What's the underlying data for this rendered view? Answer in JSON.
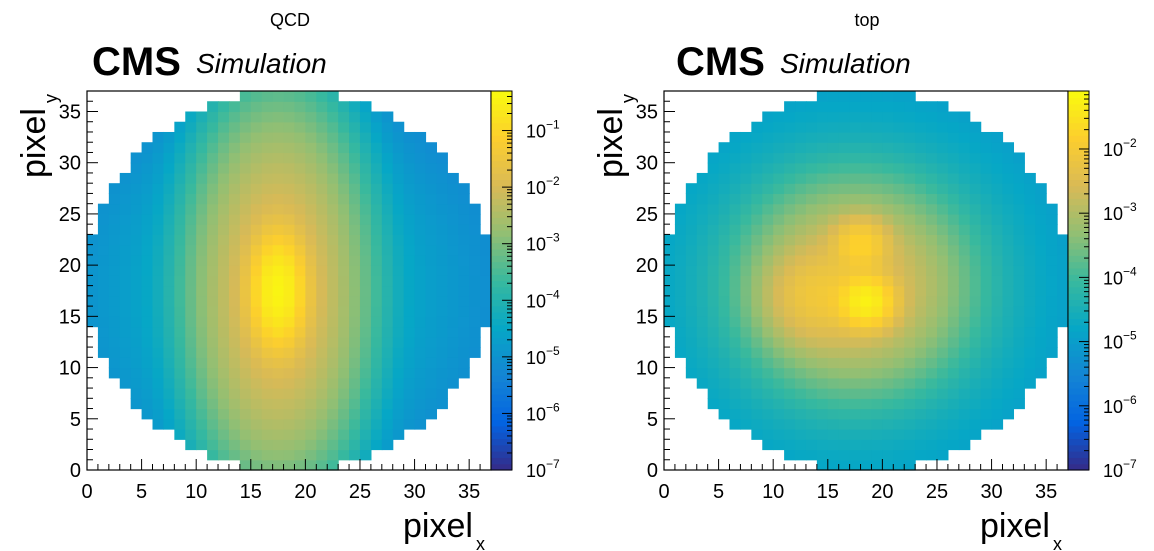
{
  "chart_data": [
    {
      "type": "heatmap",
      "title": "QCD",
      "experiment": "CMS",
      "status": "Simulation",
      "xlabel": "pixel",
      "xlabel_sub": "x",
      "ylabel": "pixel",
      "ylabel_sub": "y",
      "xlim": [
        0,
        37
      ],
      "ylim": [
        0,
        37
      ],
      "x_ticks": [
        0,
        5,
        10,
        15,
        20,
        25,
        30,
        35
      ],
      "y_ticks": [
        0,
        5,
        10,
        15,
        20,
        25,
        30,
        35
      ],
      "z_scale": "log",
      "zlim": [
        1e-07,
        0.5
      ],
      "z_ticks": [
        {
          "base": "10",
          "exp": "−7",
          "value": 1e-07
        },
        {
          "base": "10",
          "exp": "−6",
          "value": 1e-06
        },
        {
          "base": "10",
          "exp": "−5",
          "value": 1e-05
        },
        {
          "base": "10",
          "exp": "−4",
          "value": 0.0001
        },
        {
          "base": "10",
          "exp": "−3",
          "value": 0.001
        },
        {
          "base": "10",
          "exp": "−2",
          "value": 0.01
        },
        {
          "base": "10",
          "exp": "−1",
          "value": 0.1
        }
      ],
      "pixel_grid": 37,
      "peaks": [
        {
          "x": 17.5,
          "y": 17.5,
          "value": 0.4
        }
      ],
      "shape": "elongated-vertical"
    },
    {
      "type": "heatmap",
      "title": "top",
      "experiment": "CMS",
      "status": "Simulation",
      "xlabel": "pixel",
      "xlabel_sub": "x",
      "ylabel": "pixel",
      "ylabel_sub": "y",
      "xlim": [
        0,
        37
      ],
      "ylim": [
        0,
        37
      ],
      "x_ticks": [
        0,
        5,
        10,
        15,
        20,
        25,
        30,
        35
      ],
      "y_ticks": [
        0,
        5,
        10,
        15,
        20,
        25,
        30,
        35
      ],
      "z_scale": "log",
      "zlim": [
        1e-07,
        0.08
      ],
      "z_ticks": [
        {
          "base": "10",
          "exp": "−7",
          "value": 1e-07
        },
        {
          "base": "10",
          "exp": "−6",
          "value": 1e-06
        },
        {
          "base": "10",
          "exp": "−5",
          "value": 1e-05
        },
        {
          "base": "10",
          "exp": "−4",
          "value": 0.0001
        },
        {
          "base": "10",
          "exp": "−3",
          "value": 0.001
        },
        {
          "base": "10",
          "exp": "−2",
          "value": 0.01
        }
      ],
      "pixel_grid": 37,
      "peaks": [
        {
          "x": 18.5,
          "y": 16.5,
          "value": 0.06
        },
        {
          "x": 18.0,
          "y": 22.0,
          "value": 0.02
        },
        {
          "x": 14.0,
          "y": 17.0,
          "value": 0.005
        }
      ],
      "shape": "broad"
    }
  ],
  "palette": [
    "#352a87",
    "#0363e1",
    "#1485d4",
    "#06a7c6",
    "#38b99e",
    "#92bf73",
    "#d9ba56",
    "#fcce2e",
    "#f9fb0e"
  ]
}
